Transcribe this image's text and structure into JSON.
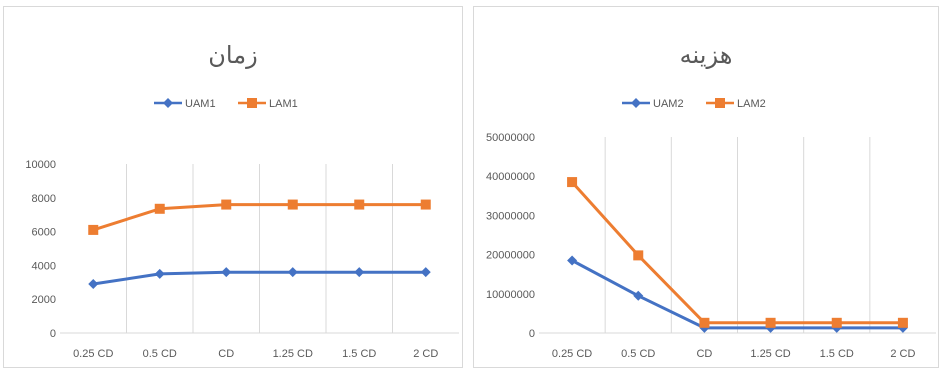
{
  "chart_data": [
    {
      "type": "line",
      "title": "زمان",
      "categories": [
        "0.25 CD",
        "0.5 CD",
        "CD",
        "1.25 CD",
        "1.5 CD",
        "2 CD"
      ],
      "ylim": [
        0,
        10000
      ],
      "yticks": [
        "0",
        "2000",
        "4000",
        "6000",
        "8000",
        "10000"
      ],
      "grid": "vertical",
      "legend_position": "top",
      "series": [
        {
          "name": "UAM1",
          "color": "#4472C4",
          "marker": "diamond",
          "values": [
            2900,
            3500,
            3600,
            3600,
            3600,
            3600
          ]
        },
        {
          "name": "LAM1",
          "color": "#ED7D31",
          "marker": "square",
          "values": [
            6100,
            7350,
            7600,
            7600,
            7600,
            7600
          ]
        }
      ]
    },
    {
      "type": "line",
      "title": "هزینه",
      "categories": [
        "0.25 CD",
        "0.5 CD",
        "CD",
        "1.25 CD",
        "1.5 CD",
        "2 CD"
      ],
      "ylim": [
        0,
        50000000
      ],
      "yticks": [
        "0",
        "10000000",
        "20000000",
        "30000000",
        "40000000",
        "50000000"
      ],
      "grid": "vertical",
      "legend_position": "top",
      "series": [
        {
          "name": "UAM2",
          "color": "#4472C4",
          "marker": "diamond",
          "values": [
            18500000,
            9500000,
            1300000,
            1300000,
            1300000,
            1300000
          ]
        },
        {
          "name": "LAM2",
          "color": "#ED7D31",
          "marker": "square",
          "values": [
            38500000,
            19800000,
            2600000,
            2600000,
            2600000,
            2600000
          ]
        }
      ]
    }
  ]
}
